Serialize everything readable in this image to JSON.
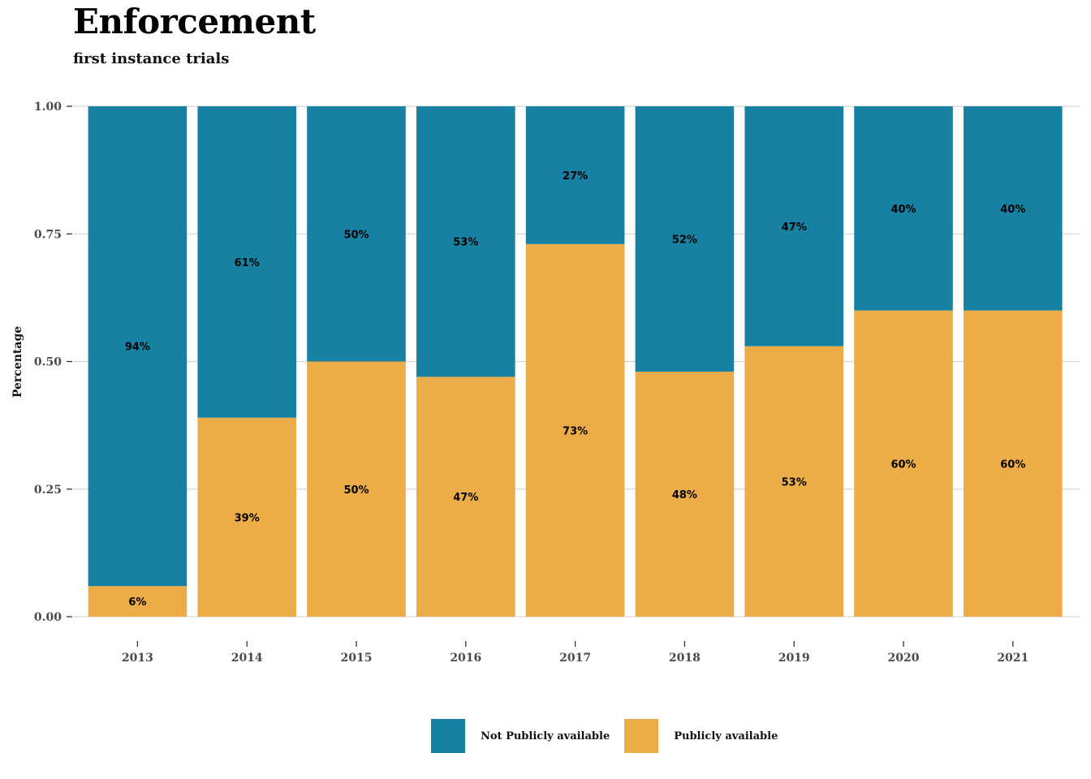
{
  "chart_data": {
    "type": "bar",
    "stacked": true,
    "title": "Enforcement",
    "subtitle": "first instance trials",
    "xlabel": "",
    "ylabel": "Percentage",
    "ylim": [
      0,
      1
    ],
    "yticks": [
      "0.00",
      "0.25",
      "0.50",
      "0.75",
      "1.00"
    ],
    "grid": true,
    "legend_position": "bottom",
    "categories": [
      "2013",
      "2014",
      "2015",
      "2016",
      "2017",
      "2018",
      "2019",
      "2020",
      "2021"
    ],
    "series": [
      {
        "name": "Publicly available",
        "color": "#ECAC47",
        "values": [
          0.06,
          0.39,
          0.5,
          0.47,
          0.73,
          0.48,
          0.53,
          0.6,
          0.6
        ],
        "labels": [
          "6%",
          "39%",
          "50%",
          "47%",
          "73%",
          "48%",
          "53%",
          "60%",
          "60%"
        ]
      },
      {
        "name": "Not Publicly available",
        "color": "#1681A2",
        "values": [
          0.94,
          0.61,
          0.5,
          0.53,
          0.27,
          0.52,
          0.47,
          0.4,
          0.4
        ],
        "labels": [
          "94%",
          "61%",
          "50%",
          "53%",
          "27%",
          "52%",
          "47%",
          "40%",
          "40%"
        ]
      }
    ],
    "legend": [
      "Not Publicly available",
      "Publicly available"
    ]
  }
}
